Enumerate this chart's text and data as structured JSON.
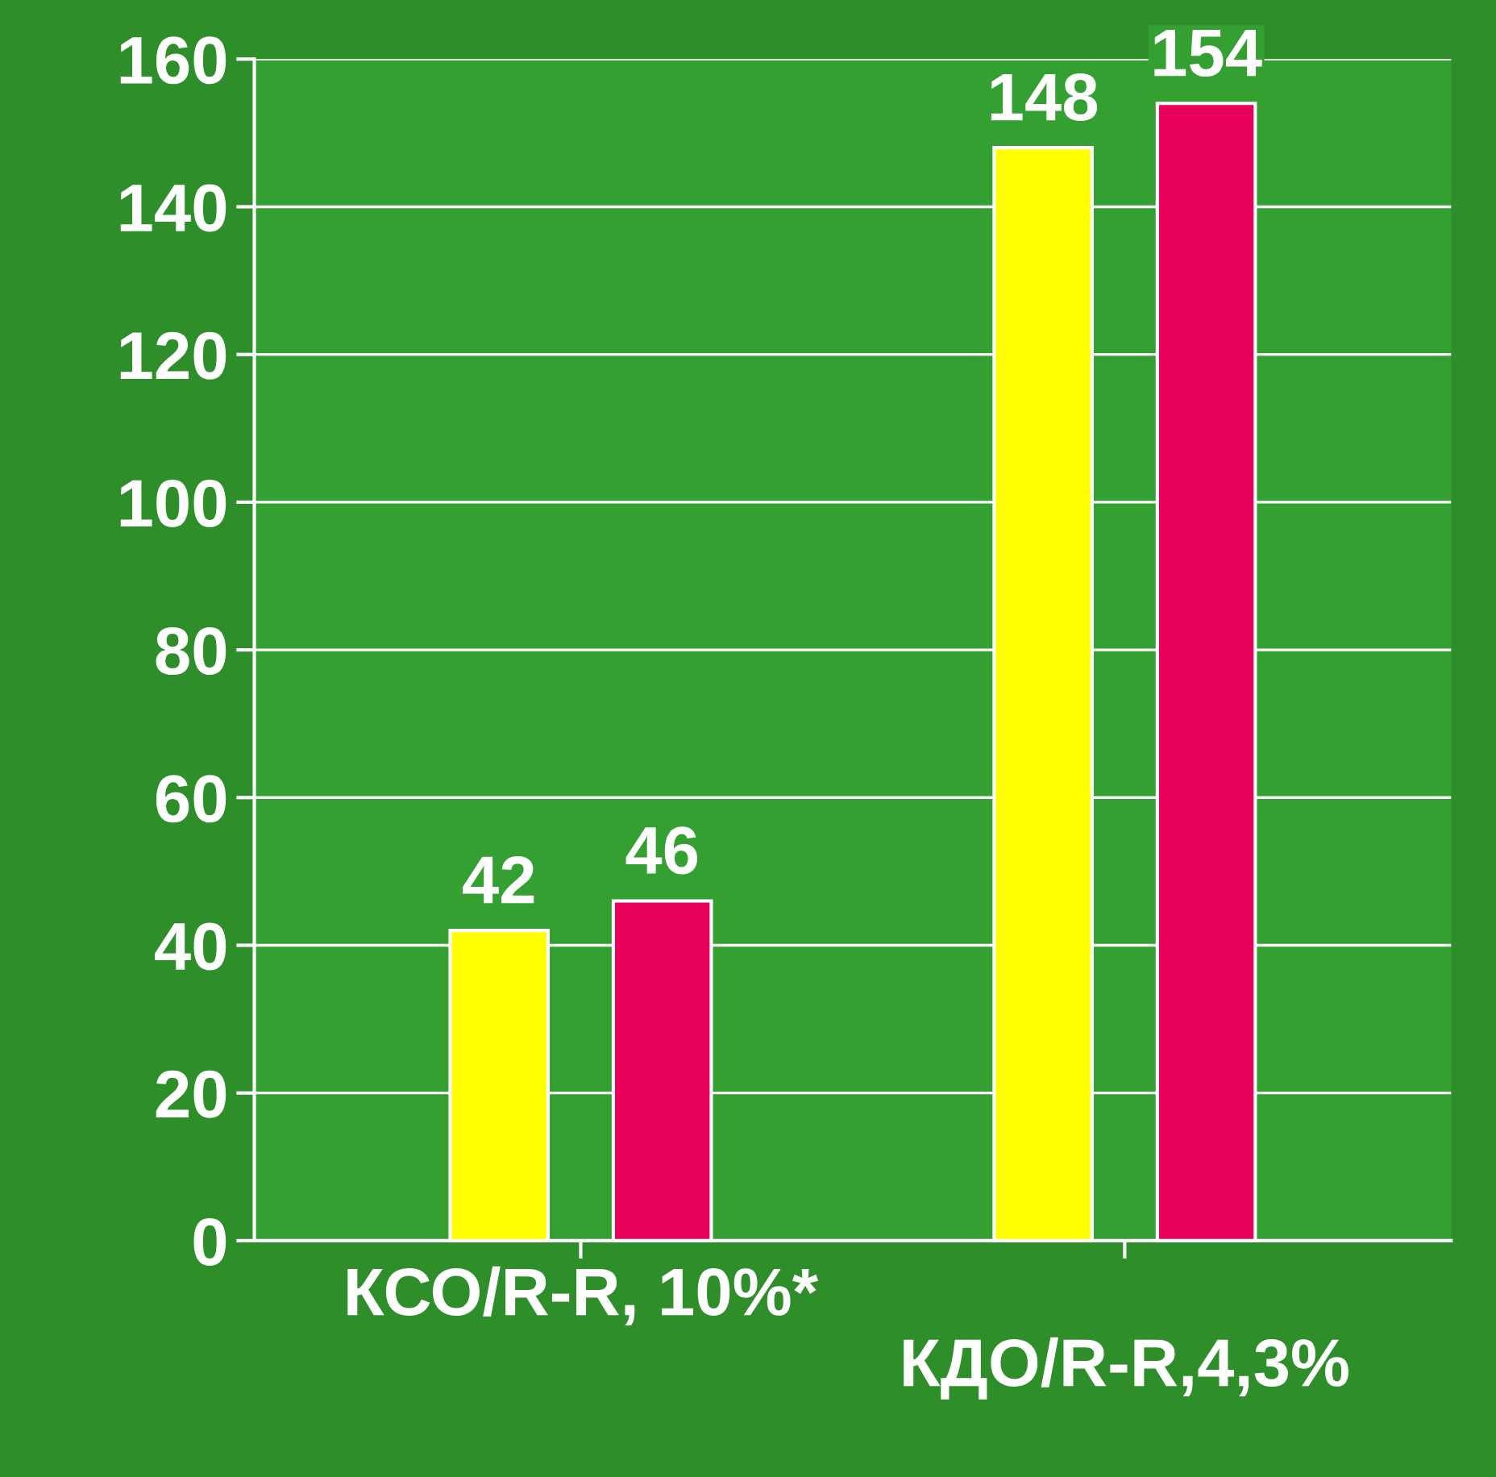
{
  "chart_data": {
    "type": "bar",
    "categories": [
      "КСО/R-R, 10%*",
      "КДО/R-R,4,3%"
    ],
    "series": [
      {
        "color": "#ffff00",
        "values": [
          42,
          148
        ]
      },
      {
        "color": "#e8005a",
        "values": [
          46,
          154
        ]
      }
    ],
    "ylim": [
      0,
      160
    ],
    "yticks": [
      0,
      20,
      40,
      60,
      80,
      100,
      120,
      140,
      160
    ],
    "grid": "y",
    "data_labels": true,
    "legend": false
  }
}
